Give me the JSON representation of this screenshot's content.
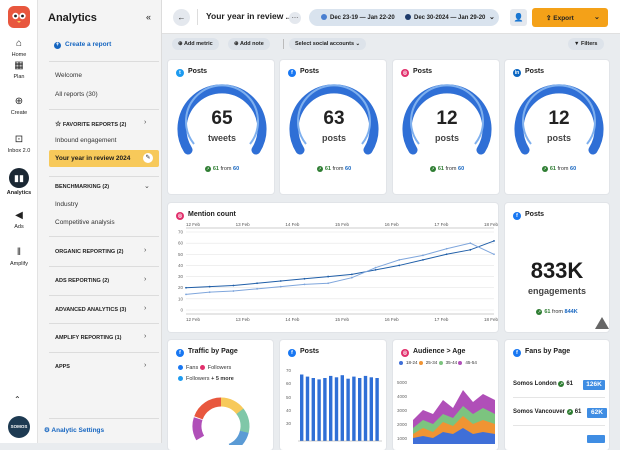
{
  "rail": {
    "items": [
      {
        "label": "Home",
        "icon": "home-icon"
      },
      {
        "label": "Plan",
        "icon": "calendar-icon"
      },
      {
        "label": "Create",
        "icon": "plus-circle-icon"
      },
      {
        "label": "Inbox 2.0",
        "icon": "inbox-icon"
      },
      {
        "label": "Analytics",
        "icon": "analytics-icon"
      },
      {
        "label": "Ads",
        "icon": "megaphone-icon"
      },
      {
        "label": "Amplify",
        "icon": "amplify-icon"
      }
    ],
    "org": "SOMOS"
  },
  "sidebar": {
    "title": "Analytics",
    "create_label": "Create a report",
    "welcome": "Welcome",
    "all_reports": "All reports (30)",
    "favorite_label": "FAVORITE REPORTS (2)",
    "fav_items": [
      "Inbound engagement",
      "Your year in review 2024"
    ],
    "benchmarking_label": "BENCHMARKING (2)",
    "bench_items": [
      "Industry",
      "Competitive analysis"
    ],
    "organic_label": "ORGANIC REPORTING (2)",
    "ads_label": "ADS REPORTING (2)",
    "advanced_label": "ADVANCED ANALYTICS (3)",
    "amplify_label": "AMPLIFY REPORTING (1)",
    "apps_label": "APPS",
    "settings_label": "Analytic Settings"
  },
  "topbar": {
    "title": "Your year in review ..",
    "range1": "Dec 23-19 — Jan 22-20",
    "range2": "Dec 30-2024 — Jan 29-20",
    "export_label": "Export"
  },
  "toolbar": {
    "add_metric": "Add metric",
    "add_note": "Add note",
    "accounts": "Select social accounts",
    "filters": "Filters"
  },
  "gauges": [
    {
      "network": "twitter",
      "color": "#1d9bf0",
      "title": "Posts",
      "value": "65",
      "unit": "tweets",
      "delta": "61",
      "from_text": "from",
      "from": "60"
    },
    {
      "network": "facebook",
      "color": "#1877f2",
      "title": "Posts",
      "value": "63",
      "unit": "posts",
      "delta": "61",
      "from_text": "from",
      "from": "60"
    },
    {
      "network": "instagram",
      "color": "#e1306c",
      "title": "Posts",
      "value": "12",
      "unit": "posts",
      "delta": "61",
      "from_text": "from",
      "from": "60"
    },
    {
      "network": "linkedin",
      "color": "#0a66c2",
      "title": "Posts",
      "value": "12",
      "unit": "posts",
      "delta": "61",
      "from_text": "from",
      "from": "60"
    }
  ],
  "mention": {
    "title": "Mention count",
    "top_ticks": [
      "12 Feb",
      "13 Feb",
      "14 Feb",
      "15 Feb",
      "16 Feb",
      "17 Feb",
      "18 Feb"
    ],
    "bottom_ticks": [
      "12 Feb",
      "13 Feb",
      "14 Feb",
      "15 Feb",
      "16 Feb",
      "17 Feb",
      "18 Feb"
    ]
  },
  "chart_data": {
    "type": "line",
    "title": "Mention count",
    "ylim": [
      0,
      70
    ],
    "yticks": [
      0,
      10,
      20,
      30,
      40,
      50,
      60,
      70
    ],
    "x": [
      "12 Feb",
      "12 Feb",
      "13 Feb",
      "13 Feb",
      "14 Feb",
      "14 Feb",
      "15 Feb",
      "15 Feb",
      "16 Feb",
      "16 Feb",
      "17 Feb",
      "17 Feb",
      "18 Feb",
      "18 Feb"
    ],
    "series": [
      {
        "color": "#1f5ea8",
        "values": [
          20,
          21,
          22,
          24,
          26,
          28,
          30,
          32,
          36,
          40,
          45,
          50,
          54,
          62
        ]
      },
      {
        "color": "#7fa6dc",
        "values": [
          14,
          16,
          17,
          19,
          21,
          23,
          24,
          29,
          38,
          45,
          49,
          55,
          60,
          50
        ]
      }
    ],
    "grid": true
  },
  "engagement": {
    "title": "Posts",
    "value": "833K",
    "unit": "engagements",
    "delta": "61",
    "from_text": "from",
    "from": "844K"
  },
  "traffic": {
    "title": "Traffic by Page",
    "legend1a": "Fans",
    "legend1b": "Followers",
    "legend2": "Followers",
    "more": "+ 5 more"
  },
  "posts_bar": {
    "title": "Posts",
    "yticks": [
      "70",
      "60",
      "50",
      "40",
      "30"
    ]
  },
  "audience": {
    "title": "Audience > Age",
    "legend": [
      "18-24",
      "25-34",
      "35-44",
      "45-54"
    ],
    "yticks": [
      "5000",
      "4000",
      "3000",
      "2000",
      "1000"
    ]
  },
  "fans": {
    "title": "Fans by Page",
    "rows": [
      {
        "name": "Somos London",
        "delta": "61",
        "value": "126K"
      },
      {
        "name": "Somos Vancouver",
        "delta": "61",
        "value": "62K"
      }
    ]
  }
}
